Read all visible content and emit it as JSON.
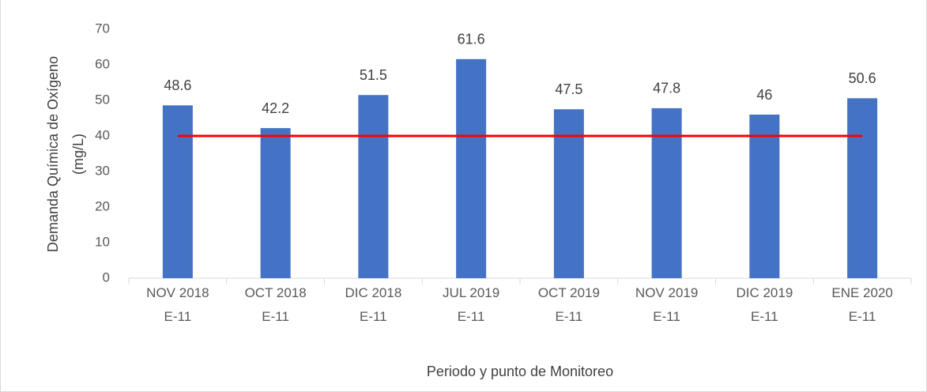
{
  "chart_data": {
    "type": "bar",
    "y_label": [
      "Demanda Química de Oxígeno",
      "(mg/L)"
    ],
    "x_label": "Periodo y punto de Monitoreo",
    "categories": [
      "NOV 2018 E-11",
      "OCT 2018 E-11",
      "DIC 2018 E-11",
      "JUL 2019 E-11",
      "OCT 2019 E-11",
      "NOV 2019 E-11",
      "DIC 2019 E-11",
      "ENE 2020 E-11"
    ],
    "values": [
      48.6,
      42.2,
      51.5,
      61.6,
      47.5,
      47.8,
      46,
      50.6
    ],
    "color": "#4472c4",
    "reference_line": {
      "value": 40,
      "color": "#ff0000"
    },
    "ylim": [
      0,
      70
    ],
    "yticks": [
      0,
      10,
      20,
      30,
      40,
      50,
      60,
      70
    ],
    "grid": false
  }
}
